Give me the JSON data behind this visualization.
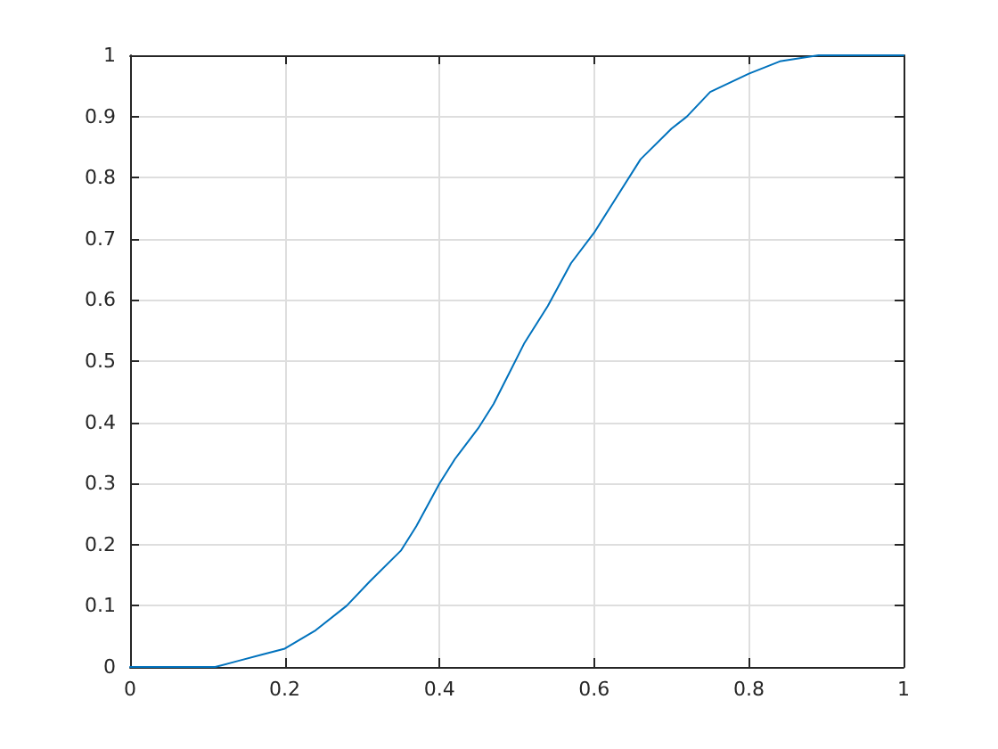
{
  "chart_data": {
    "type": "line",
    "x": [
      0,
      0.11,
      0.14,
      0.17,
      0.2,
      0.24,
      0.28,
      0.31,
      0.35,
      0.37,
      0.4,
      0.42,
      0.45,
      0.47,
      0.49,
      0.51,
      0.54,
      0.57,
      0.6,
      0.63,
      0.66,
      0.7,
      0.72,
      0.75,
      0.8,
      0.84,
      0.89,
      1
    ],
    "series": [
      {
        "color": "#0072bd",
        "values": [
          0,
          0,
          0.01,
          0.02,
          0.03,
          0.06,
          0.1,
          0.14,
          0.19,
          0.23,
          0.3,
          0.34,
          0.39,
          0.43,
          0.48,
          0.53,
          0.59,
          0.66,
          0.71,
          0.77,
          0.83,
          0.88,
          0.9,
          0.94,
          0.97,
          0.99,
          1,
          1
        ]
      }
    ],
    "xlim": [
      0,
      1
    ],
    "xticks": [
      0,
      0.2,
      0.4,
      0.6,
      0.8,
      1
    ],
    "ylim": [
      0,
      1
    ],
    "yticks": [
      0,
      0.1,
      0.2,
      0.3,
      0.4,
      0.5,
      0.6,
      0.7,
      0.8,
      0.9,
      1
    ],
    "grid": true,
    "marker": "none",
    "line_style": "solid"
  }
}
